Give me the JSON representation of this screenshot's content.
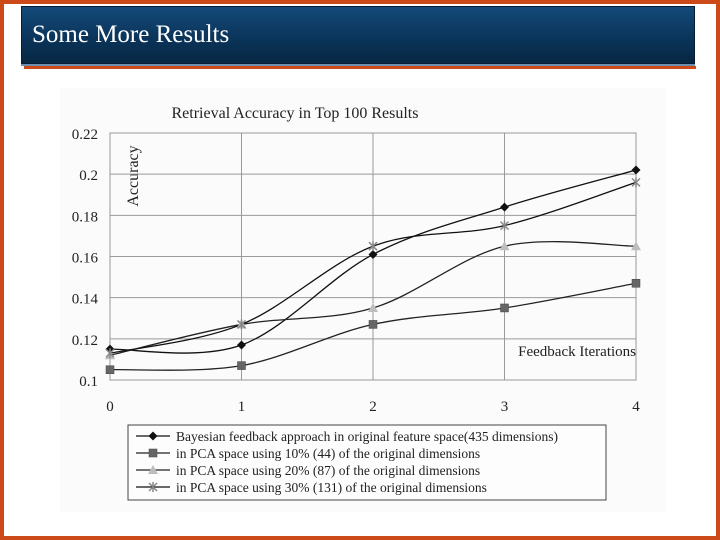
{
  "slide": {
    "title": "Some More Results",
    "colors": {
      "accent": "#cc4a1a",
      "title_bar": "#0a3358"
    }
  },
  "chart_data": {
    "type": "line",
    "title": "Retrieval Accuracy in Top 100 Results",
    "xlabel": "Feedback Iterations",
    "ylabel": "Accuracy",
    "x": [
      0,
      1,
      2,
      3,
      4
    ],
    "xticks": [
      "0",
      "1",
      "2",
      "3",
      "4"
    ],
    "ylim": [
      0.1,
      0.22
    ],
    "yticks": [
      "0.1",
      "0.12",
      "0.14",
      "0.16",
      "0.18",
      "0.2",
      "0.22"
    ],
    "grid": "horizontal and vertical",
    "legend_position": "bottom",
    "series": [
      {
        "name": "Bayesian feedback approach in original feature space(435 dimensions)",
        "values": [
          0.115,
          0.117,
          0.161,
          0.184,
          0.202
        ],
        "marker": "diamond"
      },
      {
        "name": "in PCA space using 10% (44) of the original dimensions",
        "values": [
          0.105,
          0.107,
          0.127,
          0.135,
          0.147
        ],
        "marker": "square"
      },
      {
        "name": "in PCA space using 20% (87) of the original dimensions",
        "values": [
          0.112,
          0.127,
          0.135,
          0.165,
          0.165
        ],
        "marker": "triangle"
      },
      {
        "name": "in PCA space using 30% (131) of the original dimensions",
        "values": [
          0.113,
          0.127,
          0.165,
          0.175,
          0.196
        ],
        "marker": "x"
      }
    ]
  }
}
